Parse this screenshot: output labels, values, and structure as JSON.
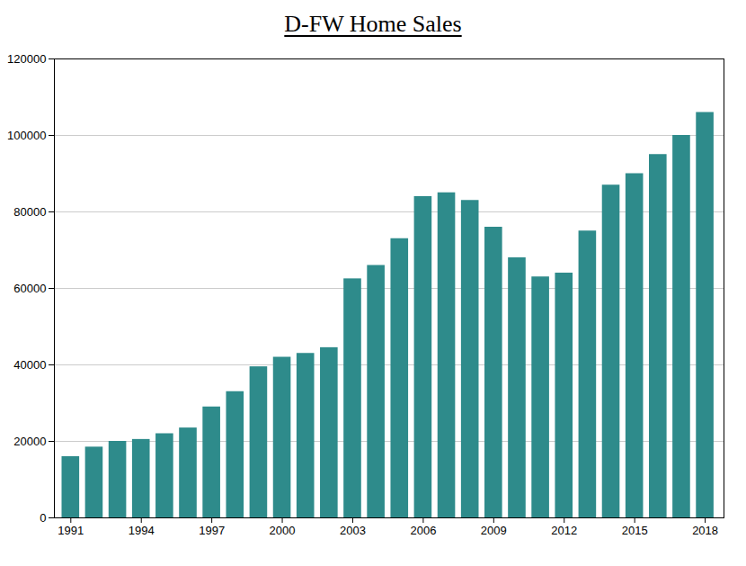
{
  "chart_data": {
    "type": "bar",
    "title": "D-FW Home Sales",
    "x": [
      1991,
      1992,
      1993,
      1994,
      1995,
      1996,
      1997,
      1998,
      1999,
      2000,
      2001,
      2002,
      2003,
      2004,
      2005,
      2006,
      2007,
      2008,
      2009,
      2010,
      2011,
      2012,
      2013,
      2014,
      2015,
      2016,
      2017,
      2018
    ],
    "values": [
      16000,
      18500,
      20000,
      20500,
      22000,
      23500,
      29000,
      33000,
      39500,
      42000,
      43000,
      44500,
      62500,
      66000,
      73000,
      84000,
      85000,
      83000,
      76000,
      68000,
      63000,
      64000,
      75000,
      87000,
      90000,
      95000,
      100000,
      106000
    ],
    "color": "#2e8b8b",
    "xlim": [
      1990.3,
      2018.8
    ],
    "xticks": [
      1991,
      1994,
      1997,
      2000,
      2003,
      2006,
      2009,
      2012,
      2015,
      2018
    ],
    "ylim": [
      0,
      120000
    ],
    "yticks": [
      0,
      20000,
      40000,
      60000,
      80000,
      100000,
      120000
    ],
    "grid": true
  }
}
